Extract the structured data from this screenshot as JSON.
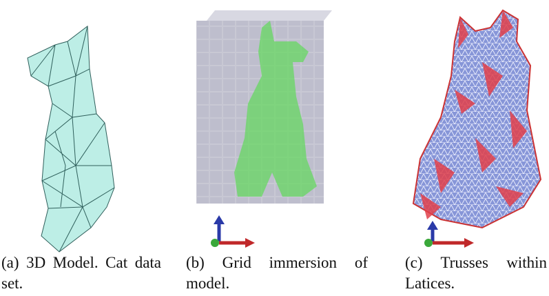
{
  "figures": [
    {
      "label": "(a)",
      "caption": "3D Model. Cat data set."
    },
    {
      "label": "(b)",
      "caption": "Grid immersion of model."
    },
    {
      "label": "(c)",
      "caption": "Trusses within Latices."
    }
  ]
}
